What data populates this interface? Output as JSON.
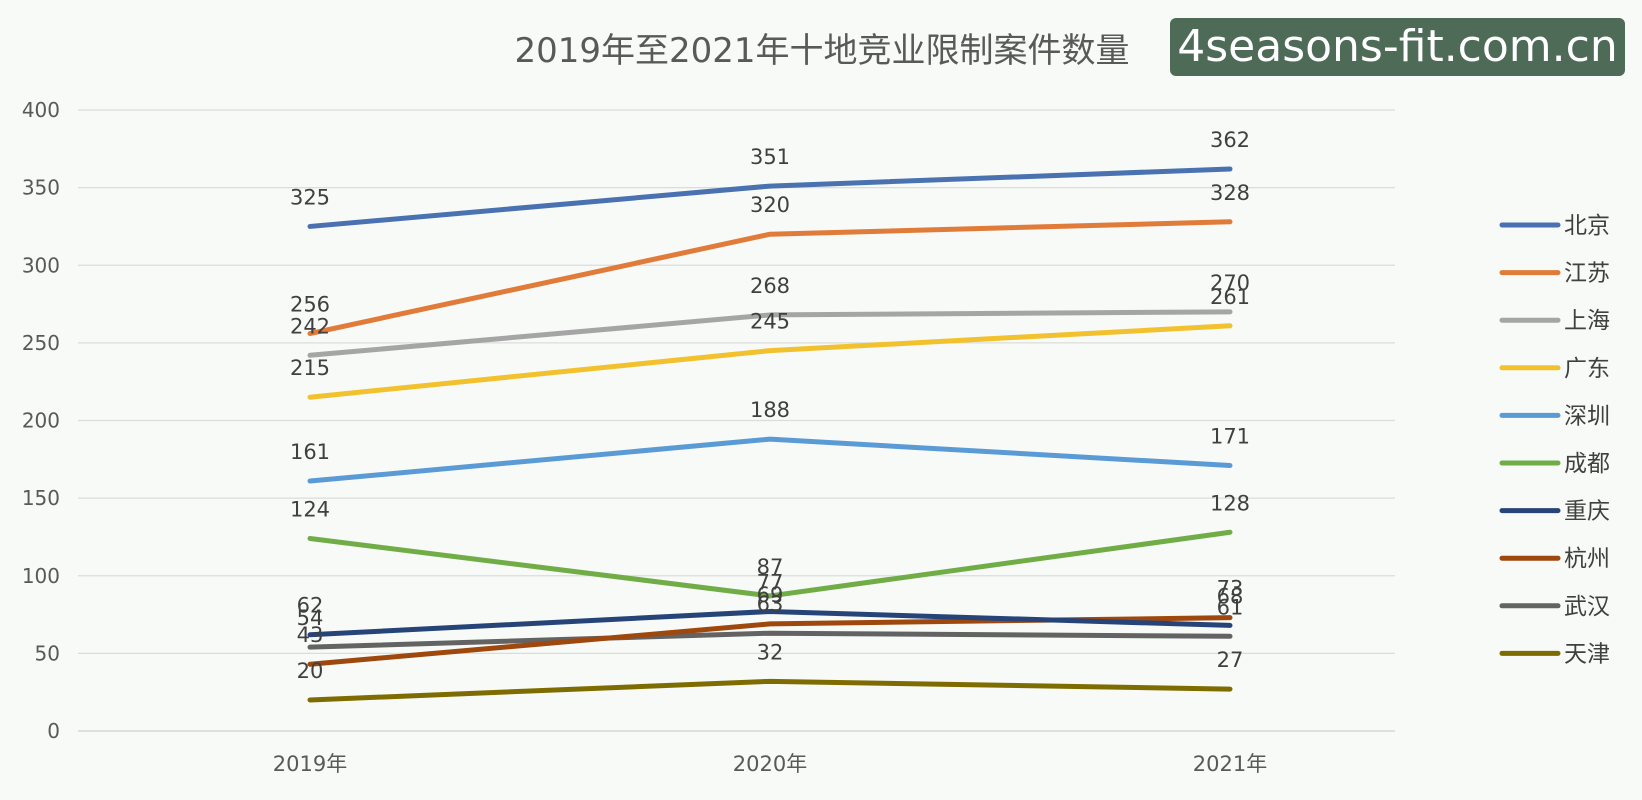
{
  "watermark": "4seasons-fit.com.cn",
  "chart_data": {
    "type": "line",
    "title": "2019年至2021年十地竞业限制案件数量",
    "categories": [
      "2019年",
      "2020年",
      "2021年"
    ],
    "ylim": [
      0,
      400
    ],
    "yticks": [
      0,
      50,
      100,
      150,
      200,
      250,
      300,
      350,
      400
    ],
    "grid": true,
    "legend": "right",
    "series": [
      {
        "name": "北京",
        "values": [
          325,
          351,
          362
        ],
        "color": "#4a72b0"
      },
      {
        "name": "江苏",
        "values": [
          256,
          320,
          328
        ],
        "color": "#e07b39"
      },
      {
        "name": "上海",
        "values": [
          242,
          268,
          270
        ],
        "color": "#a5a5a5"
      },
      {
        "name": "广东",
        "values": [
          215,
          245,
          261
        ],
        "color": "#f2c12e"
      },
      {
        "name": "深圳",
        "values": [
          161,
          188,
          171
        ],
        "color": "#5b9bd5"
      },
      {
        "name": "成都",
        "values": [
          124,
          87,
          128
        ],
        "color": "#70ad47"
      },
      {
        "name": "重庆",
        "values": [
          62,
          77,
          68
        ],
        "color": "#264478"
      },
      {
        "name": "杭州",
        "values": [
          43,
          69,
          73
        ],
        "color": "#9e480e"
      },
      {
        "name": "武汉",
        "values": [
          54,
          63,
          61
        ],
        "color": "#636363"
      },
      {
        "name": "天津",
        "values": [
          20,
          32,
          27
        ],
        "color": "#7f6c00"
      }
    ]
  }
}
